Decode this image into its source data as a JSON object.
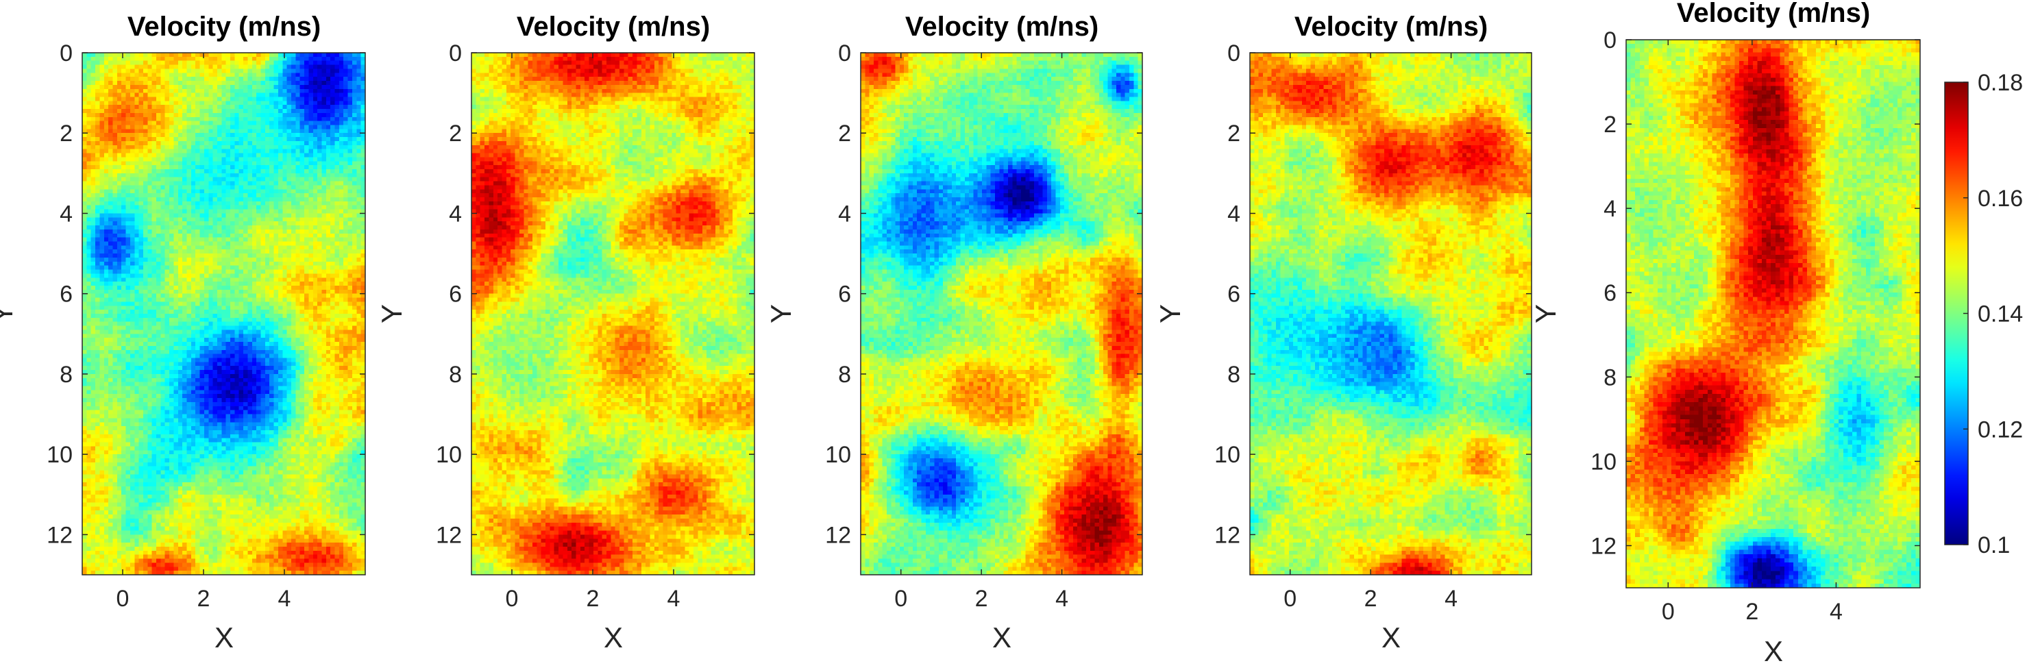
{
  "chart_data": [
    {
      "type": "heatmap",
      "title": "Velocity (m/ns)",
      "xlabel": "X",
      "ylabel": "Y",
      "xlim": [
        -1,
        6
      ],
      "ylim": [
        0,
        13
      ],
      "y_reversed": true,
      "xticks": [
        "0",
        "2",
        "4"
      ],
      "yticks": [
        "0",
        "2",
        "4",
        "6",
        "8",
        "10",
        "12"
      ],
      "colormap": "jet",
      "clim": [
        0.1,
        0.18
      ],
      "grid": "65x130 cells",
      "anomalies": [
        {
          "x": 5.0,
          "y": 0.8,
          "v": 0.105,
          "rx": 1.3,
          "ry": 1.8
        },
        {
          "x": 2.8,
          "y": 8.3,
          "v": 0.105,
          "rx": 1.8,
          "ry": 1.8
        },
        {
          "x": -0.3,
          "y": 4.8,
          "v": 0.115,
          "rx": 1.0,
          "ry": 1.3
        },
        {
          "x": 0.2,
          "y": 1.8,
          "v": 0.166,
          "rx": 1.5,
          "ry": 1.2
        },
        {
          "x": 4.8,
          "y": 12.6,
          "v": 0.168,
          "rx": 1.5,
          "ry": 0.8
        },
        {
          "x": 1.0,
          "y": 12.8,
          "v": 0.168,
          "rx": 1.0,
          "ry": 0.5
        },
        {
          "x": 2.5,
          "y": 3.0,
          "v": 0.13,
          "rx": 2.5,
          "ry": 2.0
        }
      ]
    },
    {
      "type": "heatmap",
      "title": "Velocity (m/ns)",
      "xlabel": "X",
      "ylabel": "Y",
      "xlim": [
        -1,
        6
      ],
      "ylim": [
        0,
        13
      ],
      "y_reversed": true,
      "xticks": [
        "0",
        "2",
        "4"
      ],
      "yticks": [
        "0",
        "2",
        "4",
        "6",
        "8",
        "10",
        "12"
      ],
      "colormap": "jet",
      "clim": [
        0.1,
        0.18
      ],
      "grid": "65x130 cells",
      "anomalies": [
        {
          "x": 2.0,
          "y": 0.3,
          "v": 0.172,
          "rx": 2.5,
          "ry": 1.2
        },
        {
          "x": -0.5,
          "y": 4.0,
          "v": 0.175,
          "rx": 1.3,
          "ry": 2.5
        },
        {
          "x": 4.5,
          "y": 4.0,
          "v": 0.168,
          "rx": 1.5,
          "ry": 1.2
        },
        {
          "x": 1.5,
          "y": 12.3,
          "v": 0.175,
          "rx": 2.0,
          "ry": 1.2
        },
        {
          "x": 4.0,
          "y": 11.0,
          "v": 0.166,
          "rx": 1.2,
          "ry": 1.0
        },
        {
          "x": 3.0,
          "y": 7.5,
          "v": 0.16,
          "rx": 1.5,
          "ry": 1.5
        },
        {
          "x": 0.5,
          "y": 8.0,
          "v": 0.14,
          "rx": 1.5,
          "ry": 1.5
        }
      ]
    },
    {
      "type": "heatmap",
      "title": "Velocity (m/ns)",
      "xlabel": "X",
      "ylabel": "Y",
      "xlim": [
        -1,
        6
      ],
      "ylim": [
        0,
        13
      ],
      "y_reversed": true,
      "xticks": [
        "0",
        "2",
        "4"
      ],
      "yticks": [
        "0",
        "2",
        "4",
        "6",
        "8",
        "10",
        "12"
      ],
      "colormap": "jet",
      "clim": [
        0.1,
        0.18
      ],
      "grid": "65x130 cells",
      "anomalies": [
        {
          "x": 3.0,
          "y": 3.5,
          "v": 0.1,
          "rx": 1.3,
          "ry": 1.3
        },
        {
          "x": 0.5,
          "y": 4.0,
          "v": 0.118,
          "rx": 1.4,
          "ry": 2.5
        },
        {
          "x": 1.0,
          "y": 10.7,
          "v": 0.112,
          "rx": 1.2,
          "ry": 1.3
        },
        {
          "x": 5.0,
          "y": 11.8,
          "v": 0.178,
          "rx": 1.5,
          "ry": 2.0
        },
        {
          "x": 5.5,
          "y": 7.0,
          "v": 0.168,
          "rx": 0.7,
          "ry": 2.5
        },
        {
          "x": 5.5,
          "y": 0.8,
          "v": 0.115,
          "rx": 0.6,
          "ry": 0.8
        },
        {
          "x": -0.5,
          "y": 0.3,
          "v": 0.17,
          "rx": 0.8,
          "ry": 0.6
        },
        {
          "x": 2.0,
          "y": 8.5,
          "v": 0.16,
          "rx": 1.3,
          "ry": 1.3
        }
      ]
    },
    {
      "type": "heatmap",
      "title": "Velocity (m/ns)",
      "xlabel": "X",
      "ylabel": "Y",
      "xlim": [
        -1,
        6
      ],
      "ylim": [
        0,
        13
      ],
      "y_reversed": true,
      "xticks": [
        "0",
        "2",
        "4"
      ],
      "yticks": [
        "0",
        "2",
        "4",
        "6",
        "8",
        "10",
        "12"
      ],
      "colormap": "jet",
      "clim": [
        0.1,
        0.18
      ],
      "grid": "65x130 cells",
      "anomalies": [
        {
          "x": 0.5,
          "y": 1.0,
          "v": 0.168,
          "rx": 1.8,
          "ry": 1.2
        },
        {
          "x": 2.5,
          "y": 2.8,
          "v": 0.17,
          "rx": 1.5,
          "ry": 1.5
        },
        {
          "x": 4.7,
          "y": 2.5,
          "v": 0.17,
          "rx": 1.2,
          "ry": 1.5
        },
        {
          "x": 2.3,
          "y": 7.5,
          "v": 0.118,
          "rx": 1.5,
          "ry": 1.5
        },
        {
          "x": 3.2,
          "y": 13.0,
          "v": 0.175,
          "rx": 1.0,
          "ry": 0.6
        },
        {
          "x": 0.0,
          "y": 7.0,
          "v": 0.13,
          "rx": 2.0,
          "ry": 2.5
        }
      ]
    },
    {
      "type": "heatmap",
      "title": "Velocity (m/ns)",
      "xlabel": "X",
      "ylabel": "Y",
      "xlim": [
        -1,
        6
      ],
      "ylim": [
        0,
        13
      ],
      "y_reversed": true,
      "xticks": [
        "0",
        "2",
        "4"
      ],
      "yticks": [
        "0",
        "2",
        "4",
        "6",
        "8",
        "10",
        "12"
      ],
      "colormap": "jet",
      "clim": [
        0.1,
        0.18
      ],
      "grid": "65x130 cells",
      "anomalies": [
        {
          "x": 2.3,
          "y": 1.5,
          "v": 0.178,
          "rx": 1.2,
          "ry": 2.0
        },
        {
          "x": 2.5,
          "y": 5.0,
          "v": 0.175,
          "rx": 1.3,
          "ry": 2.5
        },
        {
          "x": 0.8,
          "y": 9.0,
          "v": 0.18,
          "rx": 1.8,
          "ry": 2.0
        },
        {
          "x": 2.3,
          "y": 12.6,
          "v": 0.1,
          "rx": 1.2,
          "ry": 1.0
        },
        {
          "x": 4.5,
          "y": 9.0,
          "v": 0.125,
          "rx": 1.0,
          "ry": 1.8
        },
        {
          "x": 5.0,
          "y": 2.0,
          "v": 0.14,
          "rx": 1.0,
          "ry": 2.0
        },
        {
          "x": -0.5,
          "y": 4.0,
          "v": 0.14,
          "rx": 0.8,
          "ry": 2.0
        }
      ]
    }
  ],
  "colorbar": {
    "min": 0.1,
    "max": 0.18,
    "ticks": [
      "0.1",
      "0.12",
      "0.14",
      "0.16",
      "0.18"
    ]
  }
}
